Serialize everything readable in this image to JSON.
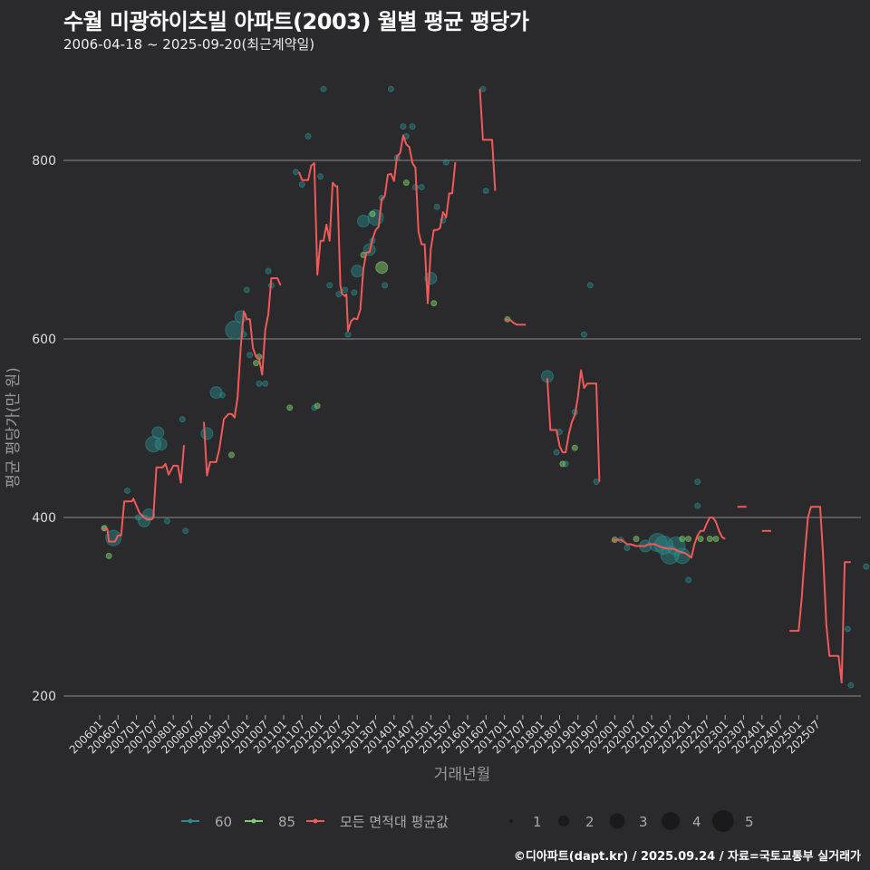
{
  "title": "수월 미광하이츠빌 아파트(2003) 월별 평균 평당가",
  "subtitle": "2006-04-18 ~ 2025-09-20(최근계약일)",
  "credit": "©디아파트(dapt.kr) / 2025.09.24 / 자료=국토교통부 실거래가",
  "colors": {
    "background": "#2a292b",
    "grid": "#8a8a8a",
    "s60": "#2a8c8c",
    "s85": "#7ccf6a",
    "avg": "#f05a5a"
  },
  "chart_data": {
    "type": "line",
    "title": "수월 미광하이츠빌 아파트(2003) 월별 평균 평당가",
    "xlabel": "거래년월",
    "ylabel": "평균 평당가(만 원)",
    "ylim": [
      185,
      895
    ],
    "yticks": [
      200,
      400,
      600,
      800
    ],
    "xticks": [
      "200601",
      "200607",
      "200701",
      "200707",
      "200801",
      "200807",
      "200901",
      "200907",
      "201001",
      "201007",
      "201101",
      "201107",
      "201201",
      "201207",
      "201301",
      "201307",
      "201401",
      "201407",
      "201501",
      "201507",
      "201601",
      "201607",
      "201701",
      "201707",
      "201801",
      "201807",
      "201901",
      "201907",
      "202001",
      "202007",
      "202101",
      "202107",
      "202201",
      "202207",
      "202301",
      "202307",
      "202401",
      "202407",
      "202501",
      "202507"
    ],
    "grid": true,
    "legend": {
      "series": [
        {
          "name": "60",
          "color": "#2a8c8c"
        },
        {
          "name": "85",
          "color": "#7ccf6a"
        },
        {
          "name": "모든 면적대 평균값",
          "color": "#f05a5a"
        }
      ],
      "size": [
        "1",
        "2",
        "3",
        "4",
        "5"
      ]
    },
    "avg_line_segments": [
      [
        [
          1,
          388
        ],
        [
          2.5,
          387
        ],
        [
          3,
          373
        ],
        [
          5,
          373
        ],
        [
          6,
          380
        ],
        [
          7,
          380
        ],
        [
          8,
          418
        ],
        [
          10.5,
          418
        ],
        [
          11,
          421
        ],
        [
          13,
          405
        ],
        [
          14.5,
          400
        ],
        [
          15.5,
          398
        ],
        [
          17,
          398
        ],
        [
          17.5,
          400
        ],
        [
          18.5,
          456
        ],
        [
          20.5,
          456
        ],
        [
          21.5,
          460
        ],
        [
          22.5,
          448
        ],
        [
          24,
          458
        ],
        [
          25.5,
          458
        ],
        [
          26.5,
          439
        ],
        [
          27.5,
          481
        ]
      ],
      [
        [
          34,
          507
        ],
        [
          35,
          447
        ],
        [
          36,
          462
        ],
        [
          38,
          462
        ],
        [
          39,
          476
        ],
        [
          40.5,
          510
        ],
        [
          42,
          516
        ],
        [
          43,
          516
        ],
        [
          44,
          512
        ],
        [
          45,
          535
        ],
        [
          46,
          590
        ],
        [
          47,
          631
        ],
        [
          48,
          622
        ],
        [
          49,
          622
        ],
        [
          50,
          590
        ],
        [
          51,
          580
        ],
        [
          52,
          578
        ],
        [
          53,
          560
        ],
        [
          54,
          610
        ],
        [
          55,
          628
        ],
        [
          56,
          668
        ],
        [
          58,
          668
        ],
        [
          59,
          660
        ]
      ],
      [
        [
          65,
          787
        ],
        [
          66,
          778
        ],
        [
          68,
          778
        ],
        [
          69,
          794
        ],
        [
          70,
          797
        ],
        [
          71,
          672
        ],
        [
          72,
          710
        ],
        [
          73,
          710
        ],
        [
          74,
          728
        ],
        [
          75,
          710
        ],
        [
          76,
          775
        ],
        [
          77,
          771
        ],
        [
          77.5,
          771
        ],
        [
          78.5,
          660
        ],
        [
          79,
          651
        ],
        [
          80,
          648
        ],
        [
          80.5,
          650
        ],
        [
          81,
          609
        ],
        [
          82,
          620
        ],
        [
          83,
          623
        ],
        [
          84,
          622
        ],
        [
          85,
          633
        ],
        [
          86,
          678
        ],
        [
          87,
          697
        ],
        [
          88,
          697
        ],
        [
          89,
          712
        ],
        [
          90,
          722
        ],
        [
          91,
          726
        ],
        [
          92,
          757
        ],
        [
          93,
          760
        ],
        [
          94,
          784
        ],
        [
          95,
          785
        ],
        [
          96,
          777
        ],
        [
          97,
          805
        ],
        [
          98,
          808
        ],
        [
          99,
          828
        ],
        [
          100,
          818
        ],
        [
          101,
          815
        ],
        [
          102,
          797
        ],
        [
          103,
          792
        ],
        [
          104,
          720
        ],
        [
          105,
          706
        ],
        [
          106,
          706
        ],
        [
          107,
          640
        ],
        [
          108,
          701
        ],
        [
          109,
          722
        ],
        [
          110,
          722
        ],
        [
          111,
          724
        ],
        [
          112,
          742
        ],
        [
          113,
          736
        ],
        [
          114,
          763
        ],
        [
          115,
          763
        ],
        [
          116,
          798
        ]
      ],
      [
        [
          124,
          880
        ],
        [
          125,
          823
        ],
        [
          128,
          823
        ],
        [
          129,
          766
        ]
      ],
      [
        [
          132,
          622
        ],
        [
          134,
          621
        ],
        [
          135,
          618
        ],
        [
          136,
          616
        ],
        [
          139,
          616
        ]
      ],
      [
        [
          146,
          556
        ],
        [
          147,
          498
        ],
        [
          149,
          498
        ],
        [
          150,
          480
        ],
        [
          151,
          473
        ],
        [
          152,
          473
        ],
        [
          153,
          493
        ],
        [
          154,
          507
        ],
        [
          155,
          515
        ],
        [
          156,
          535
        ],
        [
          157,
          565
        ],
        [
          158,
          545
        ],
        [
          159,
          550
        ],
        [
          162,
          550
        ],
        [
          163,
          440
        ]
      ],
      [
        [
          167,
          374
        ],
        [
          169,
          375
        ],
        [
          170,
          375
        ],
        [
          171,
          373
        ],
        [
          172,
          370
        ],
        [
          173,
          370
        ],
        [
          175,
          368
        ],
        [
          178,
          368
        ],
        [
          179,
          370
        ],
        [
          181,
          370
        ],
        [
          183,
          367
        ],
        [
          185,
          365
        ],
        [
          187,
          365
        ],
        [
          189,
          362
        ],
        [
          191,
          360
        ],
        [
          193,
          355
        ],
        [
          194,
          370
        ],
        [
          195,
          380
        ],
        [
          196,
          385
        ],
        [
          197,
          385
        ],
        [
          198,
          393
        ],
        [
          199,
          400
        ],
        [
          200,
          400
        ],
        [
          201,
          395
        ],
        [
          202,
          385
        ],
        [
          203,
          378
        ],
        [
          204,
          376
        ]
      ],
      [
        [
          208,
          412
        ],
        [
          211,
          412
        ]
      ],
      [
        [
          216,
          385
        ],
        [
          219,
          385
        ]
      ],
      [
        [
          225,
          273
        ],
        [
          228,
          273
        ],
        [
          229,
          310
        ],
        [
          230,
          360
        ],
        [
          231,
          400
        ],
        [
          232,
          412
        ],
        [
          235,
          412
        ],
        [
          236,
          355
        ],
        [
          237,
          280
        ],
        [
          238,
          245
        ],
        [
          241,
          245
        ],
        [
          242,
          215
        ],
        [
          243,
          350
        ],
        [
          245,
          350
        ]
      ]
    ],
    "scatter_60": [
      [
        1.5,
        388,
        1
      ],
      [
        4.5,
        377,
        3
      ],
      [
        9,
        430,
        1
      ],
      [
        12.5,
        400,
        1
      ],
      [
        14.5,
        396,
        2
      ],
      [
        16,
        403,
        2
      ],
      [
        17.5,
        482,
        3
      ],
      [
        19,
        495,
        2
      ],
      [
        22,
        396,
        1
      ],
      [
        20,
        482,
        2
      ],
      [
        27,
        510,
        1
      ],
      [
        28,
        385,
        1
      ],
      [
        35,
        494,
        2
      ],
      [
        38,
        540,
        2
      ],
      [
        40,
        537,
        1
      ],
      [
        44,
        610,
        4
      ],
      [
        46,
        625,
        2
      ],
      [
        47,
        605,
        1
      ],
      [
        48,
        655,
        1
      ],
      [
        49,
        582,
        1
      ],
      [
        52,
        550,
        1
      ],
      [
        54,
        550,
        1
      ],
      [
        55,
        676,
        1
      ],
      [
        56,
        660,
        1
      ],
      [
        64,
        787,
        1
      ],
      [
        66,
        773,
        1
      ],
      [
        68,
        827,
        1
      ],
      [
        70,
        523,
        1
      ],
      [
        72,
        782,
        1
      ],
      [
        73,
        880,
        1
      ],
      [
        75,
        660,
        1
      ],
      [
        78,
        650,
        1
      ],
      [
        80,
        655,
        1
      ],
      [
        81,
        605,
        1
      ],
      [
        83,
        652,
        1
      ],
      [
        84,
        676,
        2
      ],
      [
        86,
        732,
        2
      ],
      [
        88,
        700,
        2
      ],
      [
        89,
        710,
        1
      ],
      [
        90,
        736,
        3
      ],
      [
        92,
        758,
        1
      ],
      [
        93,
        660,
        1
      ],
      [
        95,
        880,
        1
      ],
      [
        97,
        803,
        1
      ],
      [
        99,
        838,
        1
      ],
      [
        100,
        827,
        1
      ],
      [
        102,
        838,
        1
      ],
      [
        103,
        770,
        1
      ],
      [
        105,
        770,
        1
      ],
      [
        108,
        668,
        2
      ],
      [
        110,
        748,
        1
      ],
      [
        112,
        733,
        1
      ],
      [
        113,
        798,
        1
      ],
      [
        125,
        880,
        1
      ],
      [
        126,
        766,
        1
      ],
      [
        146,
        558,
        2
      ],
      [
        149,
        473,
        1
      ],
      [
        150,
        496,
        1
      ],
      [
        152,
        460,
        1
      ],
      [
        155,
        518,
        1
      ],
      [
        158,
        605,
        1
      ],
      [
        160,
        660,
        1
      ],
      [
        162,
        440,
        1
      ],
      [
        170,
        375,
        1
      ],
      [
        172,
        366,
        1
      ],
      [
        178,
        368,
        2
      ],
      [
        182,
        372,
        4
      ],
      [
        184,
        369,
        4
      ],
      [
        186,
        358,
        4
      ],
      [
        188,
        368,
        4
      ],
      [
        190,
        357,
        3
      ],
      [
        192,
        330,
        1
      ],
      [
        195,
        440,
        1
      ],
      [
        195,
        413,
        1
      ],
      [
        244,
        275,
        1
      ],
      [
        245,
        212,
        1
      ],
      [
        250,
        345,
        1
      ]
    ],
    "scatter_85": [
      [
        1.5,
        388,
        1
      ],
      [
        3,
        357,
        1
      ],
      [
        43,
        470,
        1
      ],
      [
        51,
        573,
        1
      ],
      [
        52,
        580,
        1
      ],
      [
        62,
        523,
        1
      ],
      [
        71,
        525,
        1
      ],
      [
        86,
        694,
        1
      ],
      [
        89,
        740,
        1
      ],
      [
        92,
        680,
        2
      ],
      [
        100,
        775,
        1
      ],
      [
        109,
        640,
        1
      ],
      [
        133,
        622,
        1
      ],
      [
        151,
        460,
        1
      ],
      [
        155,
        478,
        1
      ],
      [
        168,
        375,
        1
      ],
      [
        175,
        376,
        1
      ],
      [
        190,
        376,
        1
      ],
      [
        192,
        376,
        1
      ],
      [
        196,
        376,
        1
      ],
      [
        199,
        376,
        1
      ],
      [
        201,
        376,
        1
      ]
    ]
  }
}
